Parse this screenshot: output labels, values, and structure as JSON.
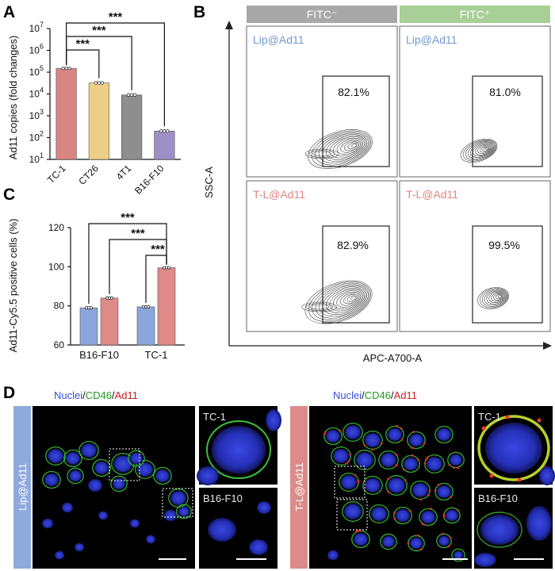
{
  "panels": {
    "A": {
      "letter": "A"
    },
    "B": {
      "letter": "B"
    },
    "C": {
      "letter": "C"
    },
    "D": {
      "letter": "D"
    }
  },
  "chart_data": [
    {
      "id": "A",
      "type": "bar",
      "ylabel": "Ad11 copies (fold changes)",
      "log_scale": true,
      "ylim": [
        10,
        10000000
      ],
      "yticks": [
        "10^1",
        "10^2",
        "10^3",
        "10^4",
        "10^5",
        "10^6",
        "10^7"
      ],
      "categories": [
        "TC-1",
        "CT26",
        "4T1",
        "B16-F10"
      ],
      "values": [
        150000,
        32000,
        9000,
        200
      ],
      "colors": [
        "#d98582",
        "#eccf87",
        "#8e8e8e",
        "#9c90c6"
      ],
      "significance": [
        {
          "from": 0,
          "to": 1,
          "label": "***"
        },
        {
          "from": 0,
          "to": 2,
          "label": "***"
        },
        {
          "from": 0,
          "to": 3,
          "label": "***"
        }
      ]
    },
    {
      "id": "C",
      "type": "bar",
      "ylabel": "Ad11-Cy5.5 positive cells (%)",
      "ylim": [
        60,
        120
      ],
      "yticks": [
        60,
        80,
        100,
        120
      ],
      "categories": [
        "B16-F10",
        "TC-1"
      ],
      "series": [
        {
          "values": [
            79,
            79.5
          ],
          "color": "#8aa5dc"
        },
        {
          "values": [
            84,
            99.5
          ],
          "color": "#dd8a88"
        }
      ],
      "significance": [
        {
          "label": "***"
        },
        {
          "label": "***"
        },
        {
          "label": "***"
        }
      ]
    },
    {
      "id": "B",
      "type": "scatter",
      "xlabel": "APC-A700-A",
      "ylabel": "SSC-A",
      "columns": [
        "FITC⁻",
        "FITC⁺"
      ],
      "rows": [
        "Lip@Ad11",
        "T-L@Ad11"
      ],
      "gates": [
        {
          "row": 0,
          "col": 0,
          "percent": "82.1%"
        },
        {
          "row": 0,
          "col": 1,
          "percent": "81.0%"
        },
        {
          "row": 1,
          "col": 0,
          "percent": "82.9%"
        },
        {
          "row": 1,
          "col": 1,
          "percent": "99.5%"
        }
      ]
    }
  ],
  "panel_d": {
    "stain_label": {
      "nuclei": "Nuclei",
      "sep1": "/",
      "cd46": "CD46",
      "sep2": "/",
      "ad11": "Ad11"
    },
    "groups": [
      {
        "side_label": "Lip@Ad11",
        "insets": [
          "TC-1",
          "B16-F10"
        ]
      },
      {
        "side_label": "T-L@Ad11",
        "insets": [
          "TC-1",
          "B16-F10"
        ]
      }
    ],
    "colors": {
      "nuclei": "#3a4fd6",
      "cd46": "#1f9a1f",
      "ad11": "#c81e1e",
      "lip_bar": "#8ea9dc",
      "tl_bar": "#dc8b8a"
    }
  }
}
